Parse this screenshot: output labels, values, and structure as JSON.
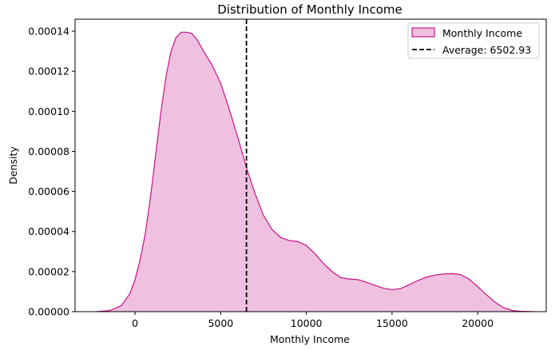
{
  "chart_data": {
    "type": "area",
    "title": "Distribution of Monthly Income",
    "xlabel": "Monthly Income",
    "ylabel": "Density",
    "xlim": [
      -3500,
      24000
    ],
    "ylim": [
      0,
      0.000146
    ],
    "x_ticks": [
      0,
      5000,
      10000,
      15000,
      20000
    ],
    "x_tick_labels": [
      "0",
      "5000",
      "10000",
      "15000",
      "20000"
    ],
    "y_ticks": [
      0,
      2e-05,
      4e-05,
      6e-05,
      8e-05,
      0.0001,
      0.00012,
      0.00014
    ],
    "y_tick_labels": [
      "0.00000",
      "0.00002",
      "0.00004",
      "0.00006",
      "0.00008",
      "0.00010",
      "0.00012",
      "0.00014"
    ],
    "grid": false,
    "legend_position": "top-right",
    "series": [
      {
        "name": "Monthly Income",
        "kind": "kde-area",
        "color": "#c71585",
        "fill": "#efc0e0",
        "x": [
          -2300,
          -1500,
          -800,
          -300,
          0,
          300,
          600,
          900,
          1200,
          1500,
          1800,
          2100,
          2400,
          2700,
          3000,
          3300,
          3600,
          4000,
          4500,
          5000,
          5500,
          6000,
          6500,
          7000,
          7500,
          8000,
          8500,
          9000,
          9500,
          10000,
          10500,
          11000,
          11500,
          12000,
          12500,
          13000,
          13500,
          14000,
          14500,
          15000,
          15500,
          16000,
          16500,
          17000,
          17500,
          18000,
          18500,
          19000,
          19500,
          20000,
          20500,
          21000,
          21500,
          22000,
          22500,
          23300
        ],
        "y": [
          0.0,
          5e-07,
          3e-06,
          9e-06,
          1.6e-05,
          2.6e-05,
          3.9e-05,
          5.7e-05,
          7.8e-05,
          9.9e-05,
          0.000117,
          0.00013,
          0.000137,
          0.0001395,
          0.0001395,
          0.000139,
          0.000136,
          0.00013,
          0.000123,
          0.000114,
          0.000101,
          8.7e-05,
          7.2e-05,
          5.9e-05,
          4.8e-05,
          4.1e-05,
          3.7e-05,
          3.55e-05,
          3.5e-05,
          3.3e-05,
          2.9e-05,
          2.4e-05,
          2e-05,
          1.7e-05,
          1.63e-05,
          1.6e-05,
          1.47e-05,
          1.32e-05,
          1.17e-05,
          1.1e-05,
          1.15e-05,
          1.35e-05,
          1.55e-05,
          1.72e-05,
          1.82e-05,
          1.88e-05,
          1.9e-05,
          1.85e-05,
          1.62e-05,
          1.25e-05,
          8.5e-06,
          4.8e-06,
          2e-06,
          6e-07,
          2e-07,
          0.0
        ]
      },
      {
        "name": "Average: 6502.93",
        "kind": "vline",
        "x": 6502.93,
        "color": "#000000",
        "dash": "dashed"
      }
    ]
  }
}
